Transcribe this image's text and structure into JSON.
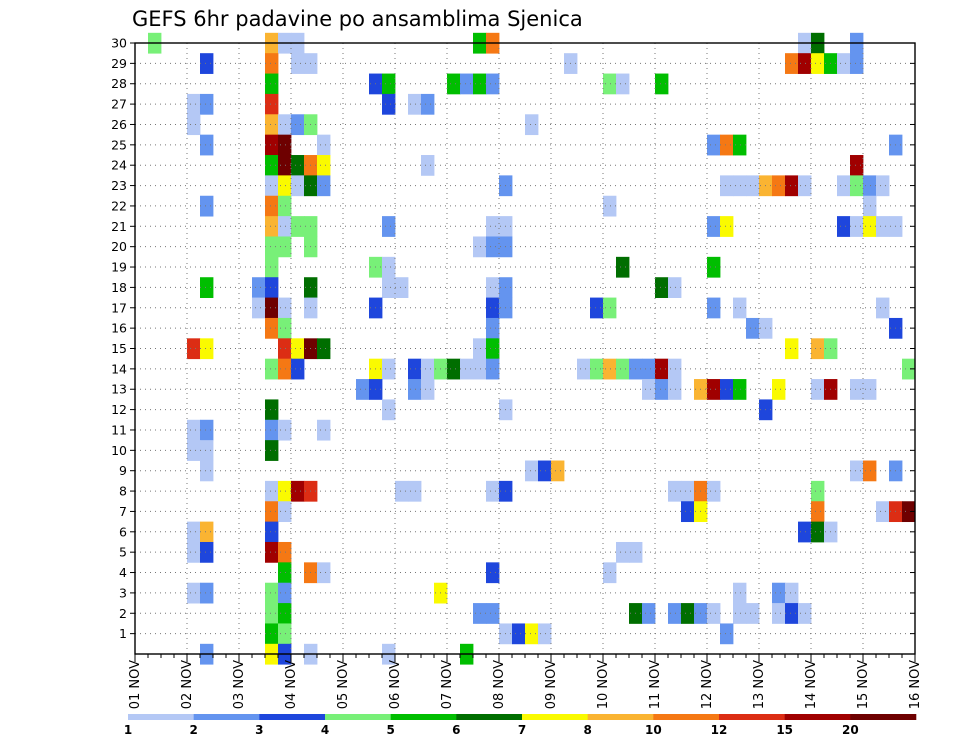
{
  "chart_data": {
    "type": "heatmap",
    "title": "GEFS 6hr padavine po ansamblima Sjenica",
    "x_tick_labels": [
      "01 NOV",
      "02 NOV",
      "03 NOV",
      "04 NOV",
      "05 NOV",
      "06 NOV",
      "07 NOV",
      "08 NOV",
      "09 NOV",
      "10 NOV",
      "11 NOV",
      "12 NOV",
      "13 NOV",
      "14 NOV",
      "15 NOV",
      "16 NOV"
    ],
    "y_tick_labels": [
      "1",
      "2",
      "3",
      "4",
      "5",
      "6",
      "7",
      "8",
      "9",
      "10",
      "11",
      "12",
      "13",
      "14",
      "15",
      "16",
      "17",
      "18",
      "19",
      "20",
      "21",
      "22",
      "23",
      "24",
      "25",
      "26",
      "27",
      "28",
      "29",
      "30"
    ],
    "y_range": [
      0,
      30
    ],
    "x_step_hours": 6,
    "grid": true,
    "colorbar": {
      "position": "bottom",
      "colors": [
        "#b4c8f5",
        "#6494ef",
        "#1e46dc",
        "#78f078",
        "#00be00",
        "#006e00",
        "#fafa00",
        "#fab432",
        "#f57814",
        "#dc2d14",
        "#a00000",
        "#6e0000"
      ],
      "tick_labels": [
        "1",
        "2",
        "3",
        "4",
        "5",
        "6",
        "7",
        "8",
        "10",
        "12",
        "15",
        "20"
      ]
    },
    "cells": [
      [
        1,
        30,
        4
      ],
      [
        10,
        30,
        8
      ],
      [
        11,
        30,
        1
      ],
      [
        12,
        30,
        1
      ],
      [
        26,
        30,
        5
      ],
      [
        27,
        30,
        9
      ],
      [
        51,
        30,
        1
      ],
      [
        52,
        30,
        6
      ],
      [
        55,
        30,
        2
      ],
      [
        5,
        29,
        3
      ],
      [
        10,
        29,
        9
      ],
      [
        12,
        29,
        1
      ],
      [
        13,
        29,
        1
      ],
      [
        33,
        29,
        1
      ],
      [
        50,
        29,
        9
      ],
      [
        51,
        29,
        11
      ],
      [
        52,
        29,
        7
      ],
      [
        53,
        29,
        5
      ],
      [
        54,
        29,
        1
      ],
      [
        55,
        29,
        2
      ],
      [
        10,
        28,
        5
      ],
      [
        18,
        28,
        3
      ],
      [
        19,
        28,
        5
      ],
      [
        24,
        28,
        5
      ],
      [
        25,
        28,
        2
      ],
      [
        26,
        28,
        5
      ],
      [
        27,
        28,
        2
      ],
      [
        36,
        28,
        4
      ],
      [
        37,
        28,
        1
      ],
      [
        40,
        28,
        5
      ],
      [
        4,
        27,
        1
      ],
      [
        5,
        27,
        2
      ],
      [
        10,
        27,
        10
      ],
      [
        19,
        27,
        3
      ],
      [
        21,
        27,
        1
      ],
      [
        22,
        27,
        2
      ],
      [
        4,
        26,
        1
      ],
      [
        10,
        26,
        8
      ],
      [
        11,
        26,
        1
      ],
      [
        12,
        26,
        2
      ],
      [
        13,
        26,
        4
      ],
      [
        30,
        26,
        1
      ],
      [
        5,
        25,
        2
      ],
      [
        10,
        25,
        11
      ],
      [
        11,
        25,
        12
      ],
      [
        14,
        25,
        1
      ],
      [
        44,
        25,
        2
      ],
      [
        45,
        25,
        9
      ],
      [
        46,
        25,
        5
      ],
      [
        58,
        25,
        2
      ],
      [
        10,
        24,
        5
      ],
      [
        11,
        24,
        12
      ],
      [
        12,
        24,
        6
      ],
      [
        13,
        24,
        9
      ],
      [
        14,
        24,
        7
      ],
      [
        22,
        24,
        1
      ],
      [
        55,
        24,
        11
      ],
      [
        10,
        23,
        1
      ],
      [
        11,
        23,
        7
      ],
      [
        12,
        23,
        1
      ],
      [
        13,
        23,
        6
      ],
      [
        14,
        23,
        2
      ],
      [
        28,
        23,
        2
      ],
      [
        45,
        23,
        1
      ],
      [
        46,
        23,
        1
      ],
      [
        47,
        23,
        1
      ],
      [
        48,
        23,
        8
      ],
      [
        49,
        23,
        9
      ],
      [
        50,
        23,
        11
      ],
      [
        51,
        23,
        1
      ],
      [
        54,
        23,
        1
      ],
      [
        55,
        23,
        4
      ],
      [
        56,
        23,
        2
      ],
      [
        57,
        23,
        1
      ],
      [
        5,
        22,
        2
      ],
      [
        10,
        22,
        9
      ],
      [
        11,
        22,
        4
      ],
      [
        36,
        22,
        1
      ],
      [
        56,
        22,
        1
      ],
      [
        10,
        21,
        8
      ],
      [
        11,
        21,
        1
      ],
      [
        12,
        21,
        4
      ],
      [
        13,
        21,
        4
      ],
      [
        19,
        21,
        2
      ],
      [
        27,
        21,
        1
      ],
      [
        28,
        21,
        1
      ],
      [
        44,
        21,
        2
      ],
      [
        45,
        21,
        7
      ],
      [
        54,
        21,
        3
      ],
      [
        55,
        21,
        1
      ],
      [
        56,
        21,
        7
      ],
      [
        57,
        21,
        1
      ],
      [
        58,
        21,
        1
      ],
      [
        10,
        20,
        4
      ],
      [
        11,
        20,
        4
      ],
      [
        13,
        20,
        4
      ],
      [
        26,
        20,
        1
      ],
      [
        27,
        20,
        2
      ],
      [
        28,
        20,
        2
      ],
      [
        10,
        19,
        4
      ],
      [
        18,
        19,
        4
      ],
      [
        19,
        19,
        1
      ],
      [
        37,
        19,
        6
      ],
      [
        44,
        19,
        5
      ],
      [
        9,
        18,
        2
      ],
      [
        10,
        18,
        3
      ],
      [
        5,
        18,
        5
      ],
      [
        13,
        18,
        6
      ],
      [
        19,
        18,
        1
      ],
      [
        20,
        18,
        1
      ],
      [
        27,
        18,
        1
      ],
      [
        28,
        18,
        2
      ],
      [
        40,
        18,
        6
      ],
      [
        41,
        18,
        1
      ],
      [
        9,
        17,
        1
      ],
      [
        10,
        17,
        12
      ],
      [
        11,
        17,
        1
      ],
      [
        13,
        17,
        1
      ],
      [
        18,
        17,
        3
      ],
      [
        27,
        17,
        3
      ],
      [
        28,
        17,
        2
      ],
      [
        35,
        17,
        3
      ],
      [
        36,
        17,
        4
      ],
      [
        44,
        17,
        2
      ],
      [
        46,
        17,
        1
      ],
      [
        57,
        17,
        1
      ],
      [
        10,
        16,
        9
      ],
      [
        11,
        16,
        4
      ],
      [
        27,
        16,
        2
      ],
      [
        47,
        16,
        2
      ],
      [
        48,
        16,
        1
      ],
      [
        58,
        16,
        3
      ],
      [
        4,
        15,
        10
      ],
      [
        5,
        15,
        7
      ],
      [
        11,
        15,
        10
      ],
      [
        12,
        15,
        7
      ],
      [
        13,
        15,
        12
      ],
      [
        14,
        15,
        6
      ],
      [
        26,
        15,
        1
      ],
      [
        27,
        15,
        5
      ],
      [
        50,
        15,
        7
      ],
      [
        52,
        15,
        8
      ],
      [
        53,
        15,
        4
      ],
      [
        10,
        14,
        4
      ],
      [
        11,
        14,
        9
      ],
      [
        12,
        14,
        3
      ],
      [
        18,
        14,
        7
      ],
      [
        19,
        14,
        1
      ],
      [
        21,
        14,
        3
      ],
      [
        22,
        14,
        1
      ],
      [
        23,
        14,
        4
      ],
      [
        24,
        14,
        6
      ],
      [
        25,
        14,
        1
      ],
      [
        26,
        14,
        1
      ],
      [
        27,
        14,
        2
      ],
      [
        34,
        14,
        1
      ],
      [
        35,
        14,
        4
      ],
      [
        36,
        14,
        8
      ],
      [
        37,
        14,
        4
      ],
      [
        38,
        14,
        2
      ],
      [
        39,
        14,
        2
      ],
      [
        40,
        14,
        11
      ],
      [
        41,
        14,
        1
      ],
      [
        59,
        14,
        4
      ],
      [
        17,
        13,
        2
      ],
      [
        18,
        13,
        3
      ],
      [
        21,
        13,
        2
      ],
      [
        22,
        13,
        1
      ],
      [
        39,
        13,
        1
      ],
      [
        40,
        13,
        2
      ],
      [
        41,
        13,
        1
      ],
      [
        43,
        13,
        8
      ],
      [
        44,
        13,
        11
      ],
      [
        45,
        13,
        3
      ],
      [
        46,
        13,
        5
      ],
      [
        49,
        13,
        7
      ],
      [
        52,
        13,
        1
      ],
      [
        53,
        13,
        11
      ],
      [
        55,
        13,
        1
      ],
      [
        56,
        13,
        1
      ],
      [
        10,
        12,
        6
      ],
      [
        19,
        12,
        1
      ],
      [
        28,
        12,
        1
      ],
      [
        48,
        12,
        3
      ],
      [
        4,
        11,
        1
      ],
      [
        5,
        11,
        2
      ],
      [
        10,
        11,
        2
      ],
      [
        11,
        11,
        1
      ],
      [
        14,
        11,
        1
      ],
      [
        4,
        10,
        1
      ],
      [
        5,
        10,
        1
      ],
      [
        10,
        10,
        6
      ],
      [
        5,
        9,
        1
      ],
      [
        30,
        9,
        1
      ],
      [
        31,
        9,
        3
      ],
      [
        32,
        9,
        8
      ],
      [
        55,
        9,
        1
      ],
      [
        56,
        9,
        9
      ],
      [
        58,
        9,
        2
      ],
      [
        10,
        8,
        1
      ],
      [
        11,
        8,
        7
      ],
      [
        12,
        8,
        11
      ],
      [
        13,
        8,
        10
      ],
      [
        20,
        8,
        1
      ],
      [
        21,
        8,
        1
      ],
      [
        27,
        8,
        1
      ],
      [
        28,
        8,
        3
      ],
      [
        41,
        8,
        1
      ],
      [
        42,
        8,
        1
      ],
      [
        43,
        8,
        9
      ],
      [
        44,
        8,
        1
      ],
      [
        52,
        8,
        4
      ],
      [
        10,
        7,
        9
      ],
      [
        11,
        7,
        1
      ],
      [
        42,
        7,
        3
      ],
      [
        43,
        7,
        7
      ],
      [
        52,
        7,
        9
      ],
      [
        57,
        7,
        1
      ],
      [
        58,
        7,
        10
      ],
      [
        59,
        7,
        12
      ],
      [
        4,
        6,
        1
      ],
      [
        5,
        6,
        8
      ],
      [
        10,
        6,
        3
      ],
      [
        51,
        6,
        3
      ],
      [
        52,
        6,
        6
      ],
      [
        53,
        6,
        1
      ],
      [
        4,
        5,
        1
      ],
      [
        5,
        5,
        3
      ],
      [
        10,
        5,
        11
      ],
      [
        11,
        5,
        9
      ],
      [
        37,
        5,
        1
      ],
      [
        38,
        5,
        1
      ],
      [
        11,
        4,
        5
      ],
      [
        13,
        4,
        9
      ],
      [
        14,
        4,
        1
      ],
      [
        27,
        4,
        3
      ],
      [
        36,
        4,
        1
      ],
      [
        4,
        3,
        1
      ],
      [
        5,
        3,
        2
      ],
      [
        10,
        3,
        4
      ],
      [
        11,
        3,
        2
      ],
      [
        23,
        3,
        7
      ],
      [
        46,
        3,
        1
      ],
      [
        49,
        3,
        2
      ],
      [
        50,
        3,
        1
      ],
      [
        10,
        2,
        4
      ],
      [
        11,
        2,
        5
      ],
      [
        26,
        2,
        2
      ],
      [
        27,
        2,
        2
      ],
      [
        38,
        2,
        6
      ],
      [
        39,
        2,
        2
      ],
      [
        41,
        2,
        2
      ],
      [
        42,
        2,
        6
      ],
      [
        43,
        2,
        2
      ],
      [
        44,
        2,
        1
      ],
      [
        46,
        2,
        1
      ],
      [
        47,
        2,
        1
      ],
      [
        49,
        2,
        1
      ],
      [
        50,
        2,
        3
      ],
      [
        51,
        2,
        1
      ],
      [
        10,
        1,
        5
      ],
      [
        11,
        1,
        4
      ],
      [
        28,
        1,
        1
      ],
      [
        29,
        1,
        3
      ],
      [
        30,
        1,
        7
      ],
      [
        31,
        1,
        1
      ],
      [
        45,
        1,
        2
      ],
      [
        5,
        0,
        2
      ],
      [
        10,
        0,
        7
      ],
      [
        11,
        0,
        3
      ],
      [
        13,
        0,
        1
      ],
      [
        19,
        0,
        1
      ],
      [
        25,
        0,
        5
      ]
    ]
  }
}
